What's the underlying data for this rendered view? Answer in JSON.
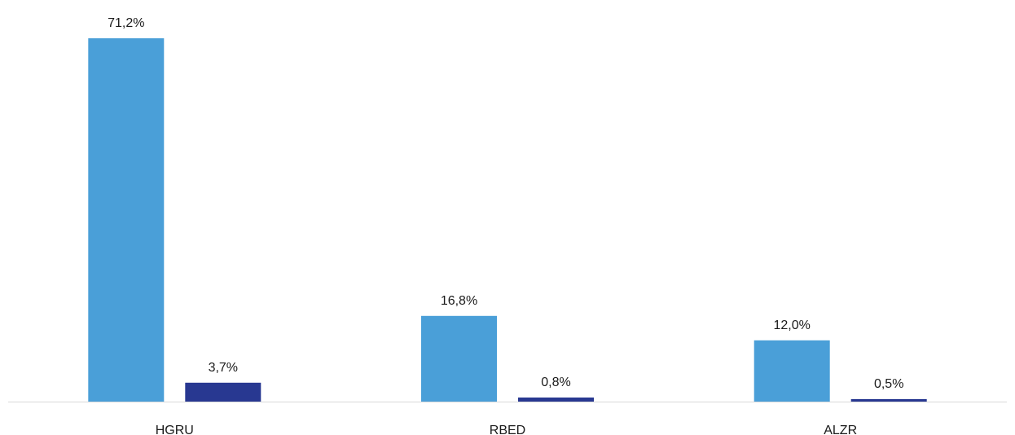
{
  "chart_data": {
    "type": "bar",
    "categories": [
      "HGRU",
      "RBED",
      "ALZR"
    ],
    "series": [
      {
        "values": [
          71.2,
          16.8,
          12.0
        ],
        "labels": [
          "71,2%",
          "16,8%",
          "12,0%"
        ],
        "color": "#4a9fd8"
      },
      {
        "values": [
          3.7,
          0.8,
          0.5
        ],
        "labels": [
          "3,7%",
          "0,8%",
          "0,5%"
        ],
        "color": "#283891"
      }
    ],
    "title": "",
    "xlabel": "",
    "ylabel": "",
    "ylim": [
      0,
      71.2
    ],
    "unit": "%",
    "grid": false,
    "legend": "none",
    "baseline_color": "#d9d9d9"
  }
}
